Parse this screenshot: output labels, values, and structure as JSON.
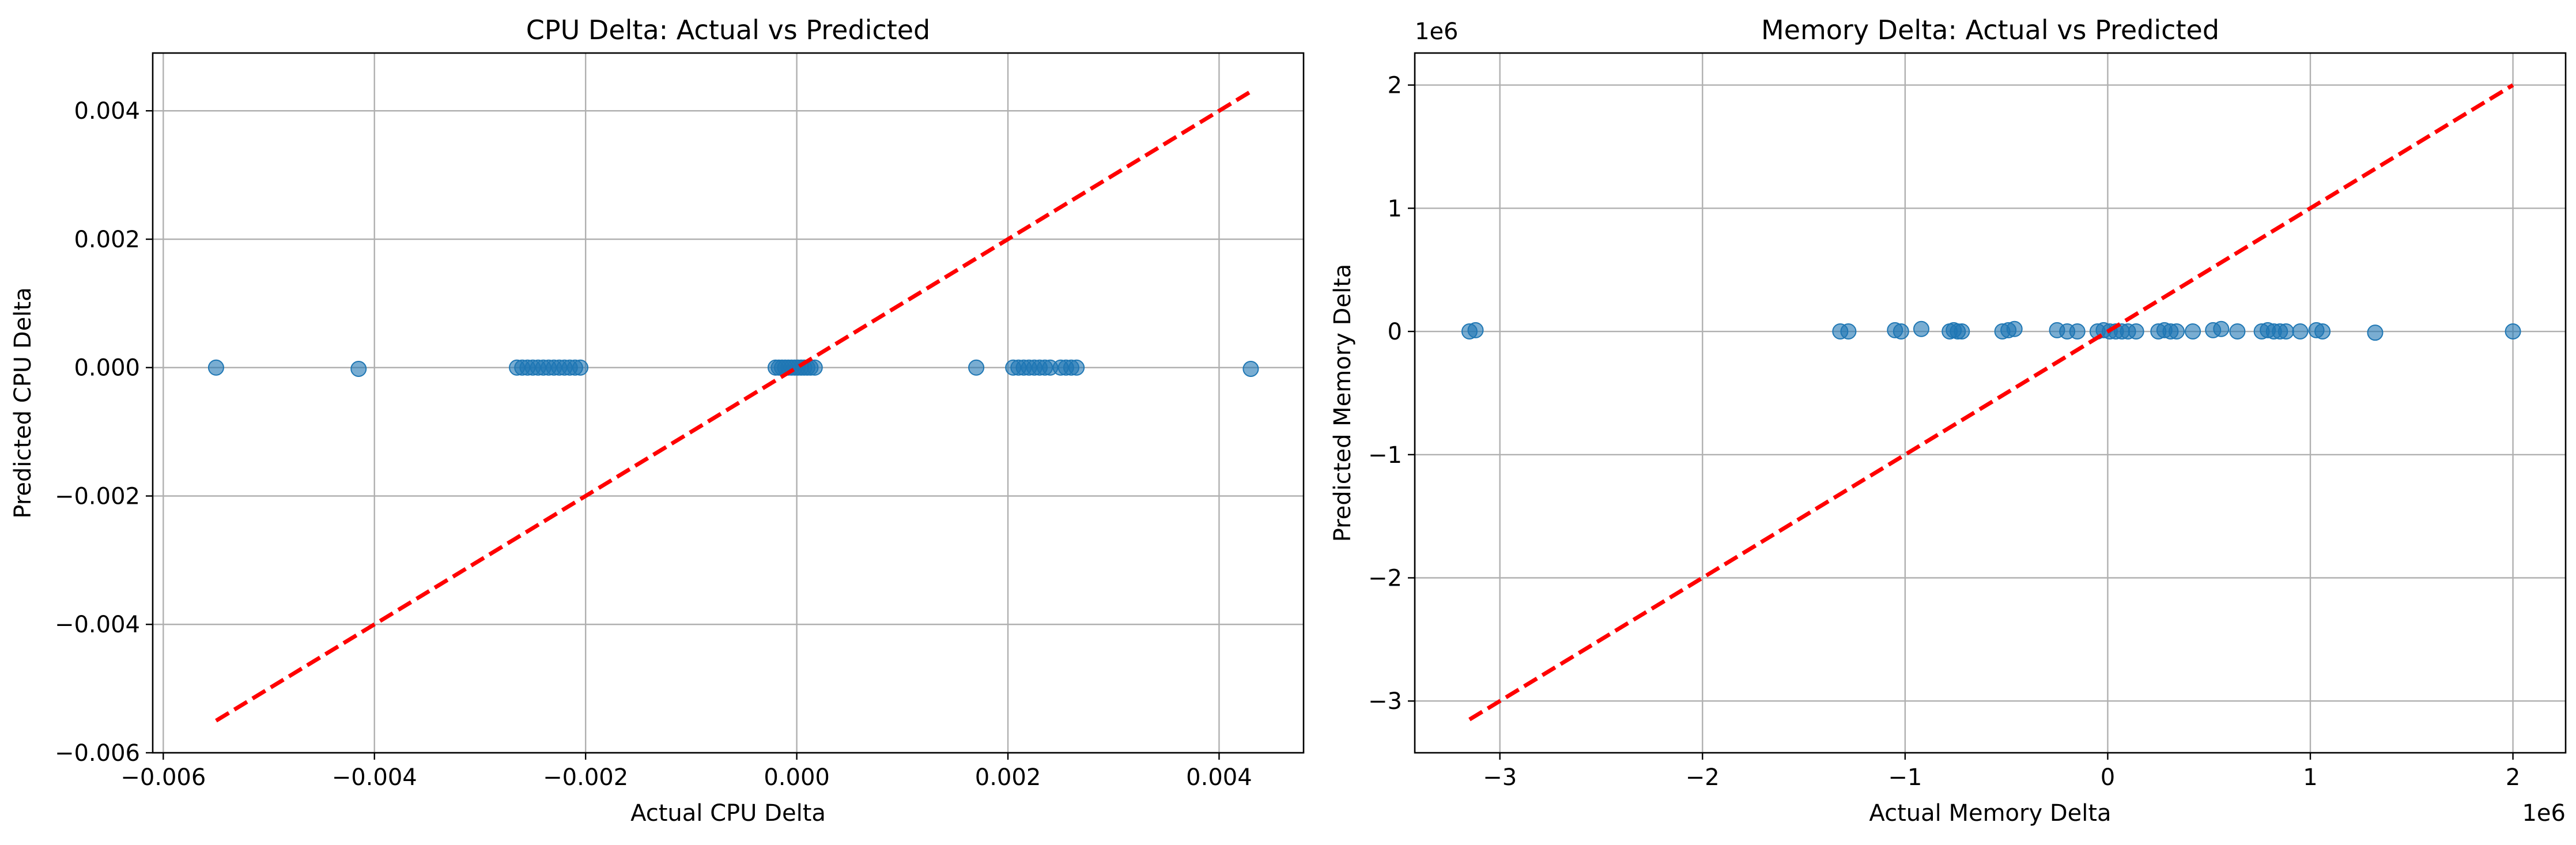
{
  "chart_data": [
    {
      "type": "scatter",
      "title": "CPU Delta: Actual vs Predicted",
      "xlabel": "Actual CPU Delta",
      "ylabel": "Predicted CPU Delta",
      "xlim": [
        -0.0061,
        0.0048
      ],
      "ylim": [
        -0.006,
        0.0049
      ],
      "grid": true,
      "xticks": [
        -0.006,
        -0.004,
        -0.002,
        0.0,
        0.002,
        0.004
      ],
      "xtick_labels": [
        "−0.006",
        "−0.004",
        "−0.002",
        "0.000",
        "0.002",
        "0.004"
      ],
      "yticks": [
        -0.006,
        -0.004,
        -0.002,
        0.0,
        0.002,
        0.004
      ],
      "ytick_labels": [
        "−0.006",
        "−0.004",
        "−0.002",
        "0.000",
        "0.002",
        "0.004"
      ],
      "offset_x": "",
      "offset_y": "",
      "point_color": "#1f77b4",
      "line_color": "#ff0000",
      "reference_line": [
        [
          -0.0055,
          -0.0055
        ],
        [
          0.0043,
          0.0043
        ]
      ],
      "points": [
        [
          -0.0055,
          0.0
        ],
        [
          -0.00415,
          -2e-05
        ],
        [
          -0.00265,
          0.0
        ],
        [
          -0.0026,
          0.0
        ],
        [
          -0.00255,
          0.0
        ],
        [
          -0.0025,
          0.0
        ],
        [
          -0.00245,
          0.0
        ],
        [
          -0.0024,
          0.0
        ],
        [
          -0.00235,
          0.0
        ],
        [
          -0.0023,
          0.0
        ],
        [
          -0.00225,
          0.0
        ],
        [
          -0.0022,
          0.0
        ],
        [
          -0.00215,
          0.0
        ],
        [
          -0.0021,
          0.0
        ],
        [
          -0.00205,
          0.0
        ],
        [
          -0.0002,
          0.0
        ],
        [
          -0.00017,
          0.0
        ],
        [
          -0.00014,
          0.0
        ],
        [
          -0.00011,
          0.0
        ],
        [
          -8e-05,
          0.0
        ],
        [
          -5e-05,
          0.0
        ],
        [
          -2e-05,
          0.0
        ],
        [
          1e-05,
          0.0
        ],
        [
          4e-05,
          0.0
        ],
        [
          7e-05,
          0.0
        ],
        [
          0.0001,
          0.0
        ],
        [
          0.00013,
          0.0
        ],
        [
          0.00017,
          0.0
        ],
        [
          0.0017,
          0.0
        ],
        [
          0.00205,
          0.0
        ],
        [
          0.0021,
          0.0
        ],
        [
          0.00215,
          0.0
        ],
        [
          0.0022,
          0.0
        ],
        [
          0.00225,
          0.0
        ],
        [
          0.0023,
          0.0
        ],
        [
          0.00235,
          0.0
        ],
        [
          0.0024,
          0.0
        ],
        [
          0.0025,
          0.0
        ],
        [
          0.00255,
          0.0
        ],
        [
          0.0026,
          0.0
        ],
        [
          0.00265,
          0.0
        ],
        [
          0.0043,
          -2e-05
        ]
      ]
    },
    {
      "type": "scatter",
      "title": "Memory Delta: Actual vs Predicted",
      "xlabel": "Actual Memory Delta",
      "ylabel": "Predicted Memory Delta",
      "xlim": [
        -3.42,
        2.26
      ],
      "ylim": [
        -3.42,
        2.26
      ],
      "grid": true,
      "xticks": [
        -3,
        -2,
        -1,
        0,
        1,
        2
      ],
      "xtick_labels": [
        "−3",
        "−2",
        "−1",
        "0",
        "1",
        "2"
      ],
      "yticks": [
        -3,
        -2,
        -1,
        0,
        1,
        2
      ],
      "ytick_labels": [
        "−3",
        "−2",
        "−1",
        "0",
        "1",
        "2"
      ],
      "offset_x": "1e6",
      "offset_y": "1e6",
      "point_color": "#1f77b4",
      "line_color": "#ff0000",
      "reference_line": [
        [
          -3.15,
          -3.15
        ],
        [
          2.0,
          2.0
        ]
      ],
      "points": [
        [
          -3.15,
          0.0
        ],
        [
          -3.12,
          0.01
        ],
        [
          -1.32,
          0.0
        ],
        [
          -1.28,
          0.0
        ],
        [
          -1.05,
          0.01
        ],
        [
          -1.02,
          0.0
        ],
        [
          -0.92,
          0.02
        ],
        [
          -0.78,
          0.0
        ],
        [
          -0.76,
          0.01
        ],
        [
          -0.74,
          0.0
        ],
        [
          -0.72,
          0.0
        ],
        [
          -0.52,
          0.0
        ],
        [
          -0.49,
          0.01
        ],
        [
          -0.46,
          0.02
        ],
        [
          -0.25,
          0.01
        ],
        [
          -0.2,
          0.0
        ],
        [
          -0.15,
          0.0
        ],
        [
          -0.05,
          0.0
        ],
        [
          -0.02,
          0.01
        ],
        [
          0.01,
          0.0
        ],
        [
          0.04,
          0.0
        ],
        [
          0.07,
          0.0
        ],
        [
          0.1,
          0.0
        ],
        [
          0.14,
          0.0
        ],
        [
          0.25,
          0.0
        ],
        [
          0.28,
          0.01
        ],
        [
          0.31,
          0.0
        ],
        [
          0.34,
          0.0
        ],
        [
          0.42,
          0.0
        ],
        [
          0.52,
          0.01
        ],
        [
          0.56,
          0.02
        ],
        [
          0.64,
          0.0
        ],
        [
          0.76,
          0.0
        ],
        [
          0.79,
          0.01
        ],
        [
          0.82,
          0.0
        ],
        [
          0.85,
          0.0
        ],
        [
          0.88,
          0.0
        ],
        [
          0.95,
          0.0
        ],
        [
          1.03,
          0.01
        ],
        [
          1.06,
          0.0
        ],
        [
          1.32,
          -0.01
        ],
        [
          2.0,
          0.0
        ]
      ]
    }
  ]
}
